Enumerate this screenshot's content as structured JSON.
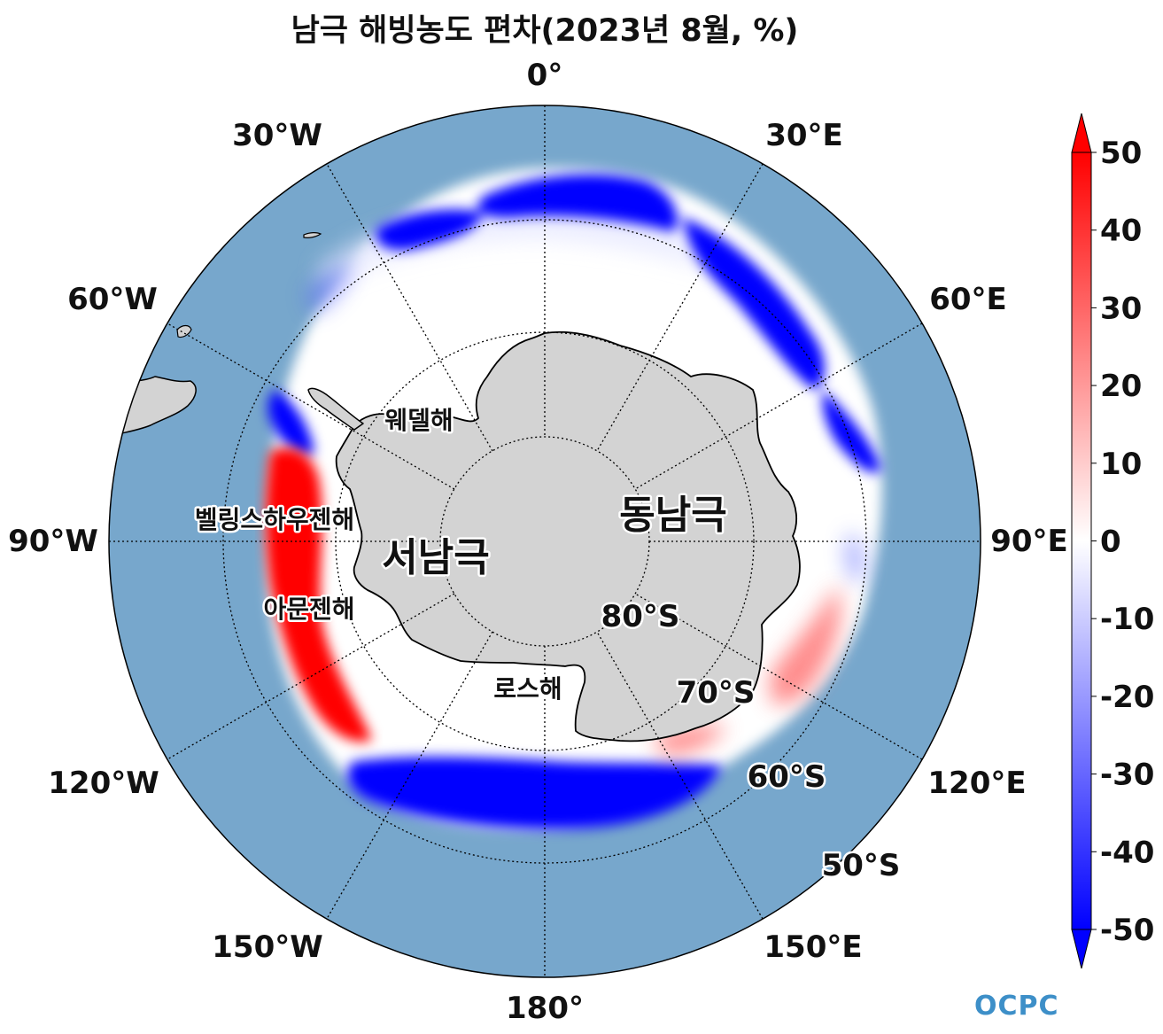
{
  "title": "남극 해빙농도 편차(2023년 8월, %)",
  "longitude_labels": {
    "lon_0": "0°",
    "lon_30e": "30°E",
    "lon_60e": "60°E",
    "lon_90e": "90°E",
    "lon_120e": "120°E",
    "lon_150e": "150°E",
    "lon_180": "180°",
    "lon_150w": "150°W",
    "lon_120w": "120°W",
    "lon_90w": "90°W",
    "lon_60w": "60°W",
    "lon_30w": "30°W"
  },
  "latitude_labels": {
    "lat_80s": "80°S",
    "lat_70s": "70°S",
    "lat_60s": "60°S",
    "lat_50s": "50°S"
  },
  "region_labels": {
    "weddell": "웨델해",
    "bellingshausen": "벨링스하우젠해",
    "amundsen": "아문젠해",
    "ross": "로스해",
    "west_antarctica": "서남극",
    "east_antarctica": "동남극"
  },
  "colorbar": {
    "ticks": [
      "50",
      "40",
      "30",
      "20",
      "10",
      "0",
      "-10",
      "-20",
      "-30",
      "-40",
      "-50"
    ],
    "max_color": "#ff0000",
    "mid_color": "#ffffff",
    "min_color": "#0000ff"
  },
  "colors": {
    "ocean": "#77a7cc",
    "land": "#d3d3d3",
    "no_anomaly_ice": "#ffffff"
  },
  "logo": "OCPC"
}
